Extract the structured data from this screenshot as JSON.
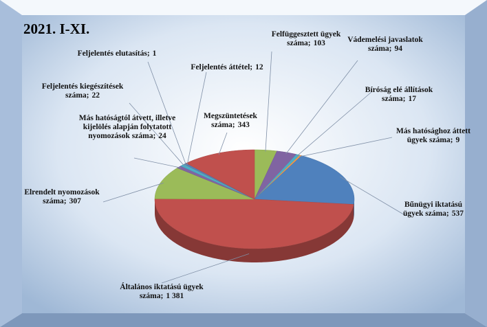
{
  "chart_data": {
    "type": "pie",
    "title": "2021. I-XI.",
    "categories": [
      "Felfüggesztett ügyek száma;",
      "Vádemelési javaslatok száma;",
      "Bíróság elé állítások száma;",
      "Más hatósághoz áttett ügyek száma;",
      "Bűnügyi iktatású ügyek száma;",
      "Általános iktatású ügyek száma;",
      "Elrendelt nyomozások száma;",
      "Más hatóságtól átvett, illetve kijelölés alapján folytatott nyomozások száma;",
      "Feljelentés kiegészítések száma;",
      "Feljelentés elutasítás;",
      "Feljelentés áttétel;",
      "Megszüntetések száma;"
    ],
    "values": [
      103,
      94,
      17,
      9,
      537,
      1381,
      307,
      24,
      22,
      1,
      12,
      343
    ],
    "value_labels": [
      "103",
      "94",
      "17",
      "9",
      "537",
      "1 381",
      "307",
      "24",
      "22",
      "1",
      "12",
      "343"
    ],
    "colors": [
      "#9bbb59",
      "#8064a2",
      "#4bacc6",
      "#f79646",
      "#4f81bd",
      "#c0504d",
      "#9bbb59",
      "#8064a2",
      "#4bacc6",
      "#f79646",
      "#4f81bd",
      "#c0504d"
    ]
  }
}
